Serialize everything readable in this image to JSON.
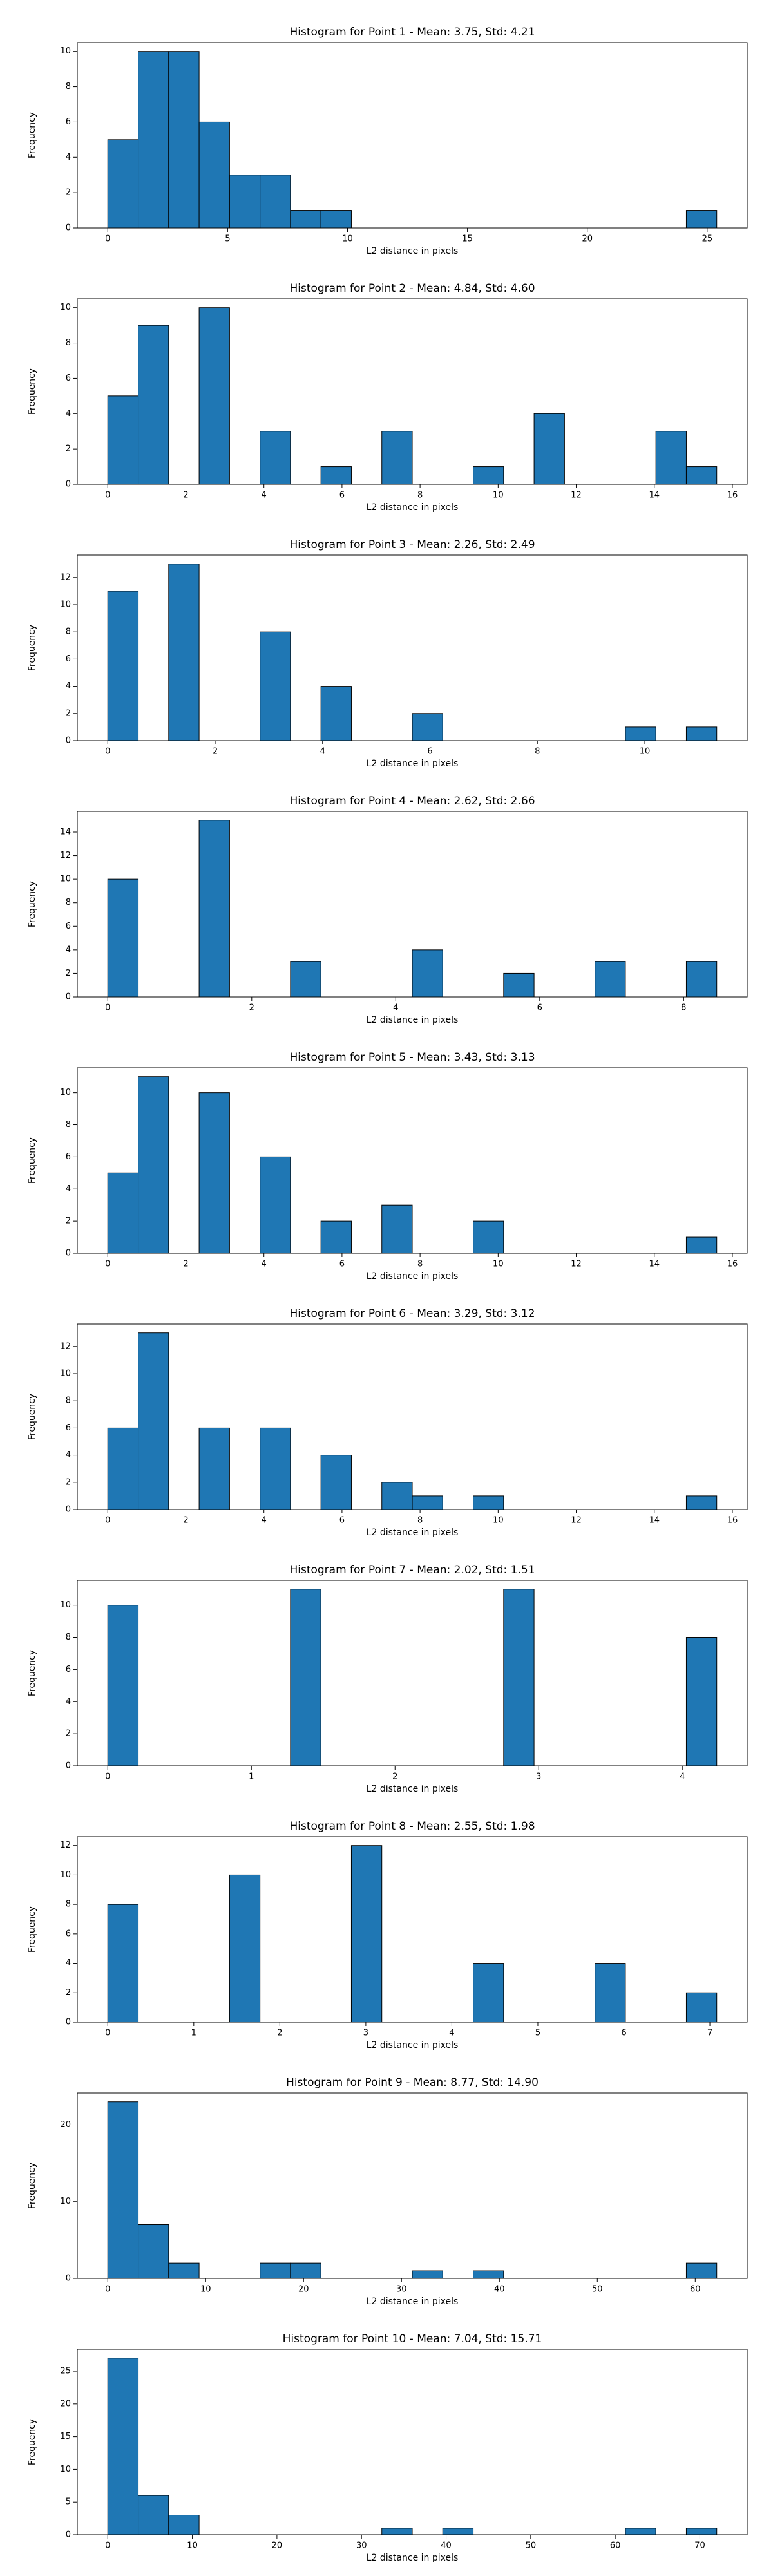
{
  "chart_data": [
    {
      "type": "histogram",
      "title": "Histogram for Point 1 - Mean: 3.75, Std: 4.21",
      "xlabel": "L2 distance in pixels",
      "ylabel": "Frequency",
      "color": "#1f77b4",
      "edgecolor": "#000000",
      "bins": [
        0,
        1.27,
        2.54,
        3.81,
        5.08,
        6.35,
        7.62,
        8.89,
        10.16,
        11.43,
        12.7,
        13.97,
        15.24,
        16.51,
        17.78,
        19.05,
        20.32,
        21.59,
        22.86,
        24.13,
        25.4
      ],
      "counts": [
        5,
        10,
        10,
        6,
        3,
        3,
        1,
        1,
        0,
        0,
        0,
        0,
        0,
        0,
        0,
        0,
        0,
        0,
        0,
        1
      ],
      "xlim": [
        -1.27,
        26.67
      ],
      "xticks": [
        0,
        5,
        10,
        15,
        20,
        25
      ],
      "ylim": [
        0,
        10.5
      ],
      "yticks": [
        0,
        2,
        4,
        6,
        8,
        10
      ]
    },
    {
      "type": "histogram",
      "title": "Histogram for Point 2 - Mean: 4.84, Std: 4.60",
      "xlabel": "L2 distance in pixels",
      "ylabel": "Frequency",
      "color": "#1f77b4",
      "edgecolor": "#000000",
      "bins": [
        0,
        0.78,
        1.56,
        2.34,
        3.12,
        3.9,
        4.68,
        5.46,
        6.24,
        7.02,
        7.8,
        8.58,
        9.36,
        10.14,
        10.92,
        11.7,
        12.48,
        13.26,
        14.04,
        14.82,
        15.6
      ],
      "counts": [
        5,
        9,
        0,
        10,
        0,
        3,
        0,
        1,
        0,
        3,
        0,
        0,
        1,
        0,
        4,
        0,
        0,
        0,
        3,
        1
      ],
      "xlim": [
        -0.78,
        16.38
      ],
      "xticks": [
        0,
        2,
        4,
        6,
        8,
        10,
        12,
        14,
        16
      ],
      "ylim": [
        0,
        10.5
      ],
      "yticks": [
        0,
        2,
        4,
        6,
        8,
        10
      ]
    },
    {
      "type": "histogram",
      "title": "Histogram for Point 3 - Mean: 2.26, Std: 2.49",
      "xlabel": "L2 distance in pixels",
      "ylabel": "Frequency",
      "color": "#1f77b4",
      "edgecolor": "#000000",
      "bins": [
        0,
        0.567,
        1.134,
        1.701,
        2.268,
        2.835,
        3.402,
        3.969,
        4.536,
        5.103,
        5.67,
        6.237,
        6.804,
        7.371,
        7.938,
        8.505,
        9.072,
        9.639,
        10.206,
        10.773,
        11.34
      ],
      "counts": [
        11,
        0,
        13,
        0,
        0,
        8,
        0,
        4,
        0,
        0,
        2,
        0,
        0,
        0,
        0,
        0,
        0,
        1,
        0,
        1
      ],
      "xlim": [
        -0.567,
        11.907
      ],
      "xticks": [
        0,
        2,
        4,
        6,
        8,
        10
      ],
      "ylim": [
        0,
        13.65
      ],
      "yticks": [
        0,
        2,
        4,
        6,
        8,
        10,
        12
      ]
    },
    {
      "type": "histogram",
      "title": "Histogram for Point 4 - Mean: 2.62, Std: 2.66",
      "xlabel": "L2 distance in pixels",
      "ylabel": "Frequency",
      "color": "#1f77b4",
      "edgecolor": "#000000",
      "bins": [
        0,
        0.423,
        0.846,
        1.269,
        1.692,
        2.115,
        2.538,
        2.961,
        3.384,
        3.807,
        4.23,
        4.653,
        5.076,
        5.499,
        5.922,
        6.345,
        6.768,
        7.191,
        7.614,
        8.037,
        8.46
      ],
      "counts": [
        10,
        0,
        0,
        15,
        0,
        0,
        3,
        0,
        0,
        0,
        4,
        0,
        0,
        2,
        0,
        0,
        3,
        0,
        0,
        3
      ],
      "xlim": [
        -0.423,
        8.883
      ],
      "xticks": [
        0,
        2,
        4,
        6,
        8
      ],
      "ylim": [
        0,
        15.75
      ],
      "yticks": [
        0,
        2,
        4,
        6,
        8,
        10,
        12,
        14
      ]
    },
    {
      "type": "histogram",
      "title": "Histogram for Point 5 - Mean: 3.43, Std: 3.13",
      "xlabel": "L2 distance in pixels",
      "ylabel": "Frequency",
      "color": "#1f77b4",
      "edgecolor": "#000000",
      "bins": [
        0,
        0.78,
        1.56,
        2.34,
        3.12,
        3.9,
        4.68,
        5.46,
        6.24,
        7.02,
        7.8,
        8.58,
        9.36,
        10.14,
        10.92,
        11.7,
        12.48,
        13.26,
        14.04,
        14.82,
        15.6
      ],
      "counts": [
        5,
        11,
        0,
        10,
        0,
        6,
        0,
        2,
        0,
        3,
        0,
        0,
        2,
        0,
        0,
        0,
        0,
        0,
        0,
        1
      ],
      "xlim": [
        -0.78,
        16.38
      ],
      "xticks": [
        0,
        2,
        4,
        6,
        8,
        10,
        12,
        14,
        16
      ],
      "ylim": [
        0,
        11.55
      ],
      "yticks": [
        0,
        2,
        4,
        6,
        8,
        10
      ]
    },
    {
      "type": "histogram",
      "title": "Histogram for Point 6 - Mean: 3.29, Std: 3.12",
      "xlabel": "L2 distance in pixels",
      "ylabel": "Frequency",
      "color": "#1f77b4",
      "edgecolor": "#000000",
      "bins": [
        0,
        0.78,
        1.56,
        2.34,
        3.12,
        3.9,
        4.68,
        5.46,
        6.24,
        7.02,
        7.8,
        8.58,
        9.36,
        10.14,
        10.92,
        11.7,
        12.48,
        13.26,
        14.04,
        14.82,
        15.6
      ],
      "counts": [
        6,
        13,
        0,
        6,
        0,
        6,
        0,
        4,
        0,
        2,
        1,
        0,
        1,
        0,
        0,
        0,
        0,
        0,
        0,
        1
      ],
      "xlim": [
        -0.78,
        16.38
      ],
      "xticks": [
        0,
        2,
        4,
        6,
        8,
        10,
        12,
        14,
        16
      ],
      "ylim": [
        0,
        13.65
      ],
      "yticks": [
        0,
        2,
        4,
        6,
        8,
        10,
        12
      ]
    },
    {
      "type": "histogram",
      "title": "Histogram for Point 7 - Mean: 2.02, Std: 1.51",
      "xlabel": "L2 distance in pixels",
      "ylabel": "Frequency",
      "color": "#1f77b4",
      "edgecolor": "#000000",
      "bins": [
        0,
        0.212,
        0.424,
        0.636,
        0.848,
        1.06,
        1.272,
        1.484,
        1.696,
        1.908,
        2.12,
        2.332,
        2.544,
        2.756,
        2.968,
        3.18,
        3.392,
        3.604,
        3.816,
        4.028,
        4.24
      ],
      "counts": [
        10,
        0,
        0,
        0,
        0,
        0,
        11,
        0,
        0,
        0,
        0,
        0,
        0,
        11,
        0,
        0,
        0,
        0,
        0,
        8
      ],
      "xlim": [
        -0.212,
        4.452
      ],
      "xticks": [
        0,
        1,
        2,
        3,
        4
      ],
      "ylim": [
        0,
        11.55
      ],
      "yticks": [
        0,
        2,
        4,
        6,
        8,
        10
      ]
    },
    {
      "type": "histogram",
      "title": "Histogram for Point 8 - Mean: 2.55, Std: 1.98",
      "xlabel": "L2 distance in pixels",
      "ylabel": "Frequency",
      "color": "#1f77b4",
      "edgecolor": "#000000",
      "bins": [
        0,
        0.354,
        0.708,
        1.062,
        1.416,
        1.77,
        2.124,
        2.478,
        2.832,
        3.186,
        3.54,
        3.894,
        4.248,
        4.602,
        4.956,
        5.31,
        5.664,
        6.018,
        6.372,
        6.726,
        7.08
      ],
      "counts": [
        8,
        0,
        0,
        0,
        10,
        0,
        0,
        0,
        12,
        0,
        0,
        0,
        4,
        0,
        0,
        0,
        4,
        0,
        0,
        2
      ],
      "xlim": [
        -0.354,
        7.434
      ],
      "xticks": [
        0,
        1,
        2,
        3,
        4,
        5,
        6,
        7
      ],
      "ylim": [
        0,
        12.6
      ],
      "yticks": [
        0,
        2,
        4,
        6,
        8,
        10,
        12
      ]
    },
    {
      "type": "histogram",
      "title": "Histogram for Point 9 - Mean: 8.77, Std: 14.90",
      "xlabel": "L2 distance in pixels",
      "ylabel": "Frequency",
      "color": "#1f77b4",
      "edgecolor": "#000000",
      "bins": [
        0,
        3.11,
        6.22,
        9.33,
        12.44,
        15.55,
        18.66,
        21.77,
        24.88,
        27.99,
        31.1,
        34.21,
        37.32,
        40.43,
        43.54,
        46.65,
        49.76,
        52.87,
        55.98,
        59.09,
        62.2
      ],
      "counts": [
        23,
        7,
        2,
        0,
        0,
        2,
        2,
        0,
        0,
        0,
        1,
        0,
        1,
        0,
        0,
        0,
        0,
        0,
        0,
        2
      ],
      "xlim": [
        -3.11,
        65.31
      ],
      "xticks": [
        0,
        10,
        20,
        30,
        40,
        50,
        60
      ],
      "ylim": [
        0,
        24.15
      ],
      "yticks": [
        0,
        10,
        20
      ]
    },
    {
      "type": "histogram",
      "title": "Histogram for Point 10 - Mean: 7.04, Std: 15.71",
      "xlabel": "L2 distance in pixels",
      "ylabel": "Frequency",
      "color": "#1f77b4",
      "edgecolor": "#000000",
      "bins": [
        0,
        3.6,
        7.2,
        10.8,
        14.4,
        18,
        21.6,
        25.2,
        28.8,
        32.4,
        36,
        39.6,
        43.2,
        46.8,
        50.4,
        54,
        57.6,
        61.2,
        64.8,
        68.4,
        72
      ],
      "counts": [
        27,
        6,
        3,
        0,
        0,
        0,
        0,
        0,
        0,
        1,
        0,
        1,
        0,
        0,
        0,
        0,
        0,
        1,
        0,
        1
      ],
      "xlim": [
        -3.6,
        75.6
      ],
      "xticks": [
        0,
        10,
        20,
        30,
        40,
        50,
        60,
        70
      ],
      "ylim": [
        0,
        28.35
      ],
      "yticks": [
        0,
        5,
        10,
        15,
        20,
        25
      ]
    }
  ]
}
